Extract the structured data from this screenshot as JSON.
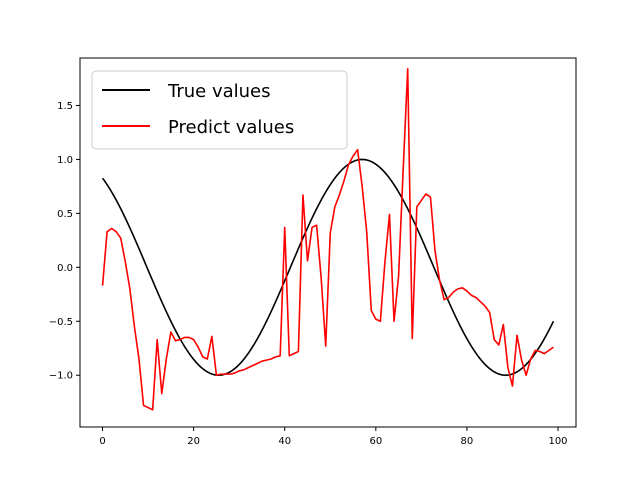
{
  "chart_data": {
    "type": "line",
    "title": "",
    "xlabel": "",
    "ylabel": "",
    "xlim": [
      -4.95,
      103.95
    ],
    "ylim": [
      -1.48,
      1.94
    ],
    "xticks": [
      0,
      20,
      40,
      60,
      80,
      100
    ],
    "yticks": [
      -1.0,
      -0.5,
      0.0,
      0.5,
      1.0,
      1.5
    ],
    "xtick_labels": [
      "0",
      "20",
      "40",
      "60",
      "80",
      "100"
    ],
    "ytick_labels": [
      "−1.0",
      "−0.5",
      "0.0",
      "0.5",
      "1.0",
      "1.5"
    ],
    "grid": false,
    "legend_position": "upper-left",
    "series": [
      {
        "name": "True values",
        "color": "#000000",
        "curve": "sine",
        "x_range": [
          0,
          99
        ],
        "points_approx": [
          [
            0,
            0.85
          ],
          [
            25.5,
            -1.0
          ],
          [
            57,
            1.0
          ],
          [
            88.5,
            -1.0
          ],
          [
            99,
            -0.5
          ]
        ]
      },
      {
        "name": "Predict values",
        "color": "#ff0000",
        "x": [
          0,
          1,
          2,
          3,
          4,
          5,
          6,
          7,
          8,
          9,
          10,
          11,
          12,
          13,
          14,
          15,
          16,
          17,
          18,
          19,
          20,
          21,
          22,
          23,
          24,
          25,
          26,
          27,
          28,
          29,
          30,
          31,
          32,
          33,
          34,
          35,
          36,
          37,
          38,
          39,
          40,
          41,
          42,
          43,
          44,
          45,
          46,
          47,
          48,
          49,
          50,
          51,
          52,
          53,
          54,
          55,
          56,
          57,
          58,
          59,
          60,
          61,
          62,
          63,
          64,
          65,
          66,
          67,
          68,
          69,
          70,
          71,
          72,
          73,
          74,
          75,
          76,
          77,
          78,
          79,
          80,
          81,
          82,
          83,
          84,
          85,
          86,
          87,
          88,
          89,
          90,
          91,
          92,
          93,
          94,
          95,
          96,
          97,
          98,
          99
        ],
        "y": [
          -0.17,
          0.33,
          0.36,
          0.33,
          0.27,
          0.05,
          -0.2,
          -0.55,
          -0.85,
          -1.28,
          -1.3,
          -1.32,
          -0.67,
          -1.17,
          -0.85,
          -0.6,
          -0.68,
          -0.67,
          -0.65,
          -0.65,
          -0.67,
          -0.74,
          -0.83,
          -0.85,
          -0.64,
          -1.0,
          -0.99,
          -0.99,
          -0.99,
          -0.98,
          -0.96,
          -0.95,
          -0.93,
          -0.91,
          -0.89,
          -0.87,
          -0.86,
          -0.85,
          -0.83,
          -0.82,
          0.37,
          -0.82,
          -0.8,
          -0.78,
          0.67,
          0.06,
          0.37,
          0.39,
          -0.1,
          -0.73,
          0.32,
          0.56,
          0.67,
          0.8,
          0.95,
          1.03,
          1.09,
          0.75,
          0.33,
          -0.4,
          -0.48,
          -0.5,
          0.05,
          0.49,
          -0.5,
          -0.08,
          0.9,
          1.84,
          -0.66,
          0.56,
          0.62,
          0.68,
          0.65,
          0.15,
          -0.12,
          -0.3,
          -0.28,
          -0.23,
          -0.2,
          -0.19,
          -0.22,
          -0.26,
          -0.28,
          -0.32,
          -0.36,
          -0.42,
          -0.67,
          -0.72,
          -0.53,
          -0.93,
          -1.1,
          -0.63,
          -0.86,
          -1.0,
          -0.85,
          -0.77,
          -0.78,
          -0.8,
          -0.77,
          -0.74
        ]
      }
    ]
  }
}
